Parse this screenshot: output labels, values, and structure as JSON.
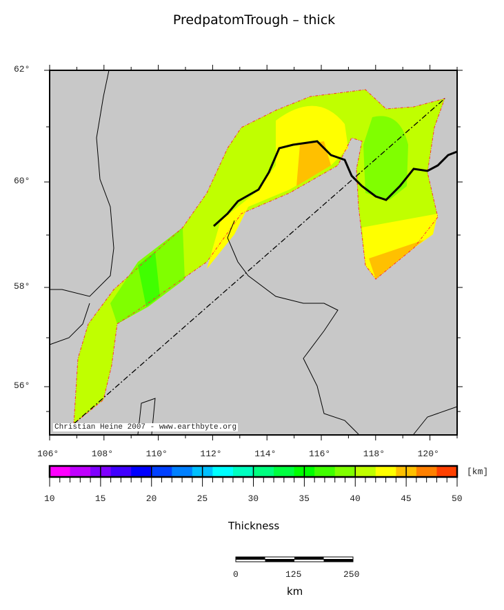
{
  "title": "PredpatomTrough – thick",
  "map": {
    "lat_labels": [
      "62°",
      "60°",
      "58°",
      "56°"
    ],
    "lon_labels": [
      "106°",
      "108°",
      "110°",
      "112°",
      "114°",
      "116°",
      "118°",
      "120°"
    ],
    "credit": "Christian Heine 2007 - www.earthbyte.org",
    "land_color": "#c8c8c8",
    "outline_color": "#ff3030"
  },
  "colorbar": {
    "unit": "[km]",
    "title": "Thickness",
    "labels": [
      "10",
      "15",
      "20",
      "25",
      "30",
      "35",
      "40",
      "45",
      "50"
    ],
    "range": [
      10,
      50
    ],
    "step": 2,
    "colors": [
      "#ff00ff",
      "#c000ff",
      "#8000ff",
      "#4000ff",
      "#0000ff",
      "#0040ff",
      "#0080ff",
      "#00c0ff",
      "#00ffff",
      "#00ffc0",
      "#00ff80",
      "#00ff40",
      "#00ff00",
      "#40ff00",
      "#80ff00",
      "#c0ff00",
      "#ffff00",
      "#ffc000",
      "#ff8000",
      "#ff4000"
    ]
  },
  "scalebar": {
    "labels": [
      "0",
      "125",
      "250"
    ],
    "unit": "km"
  }
}
